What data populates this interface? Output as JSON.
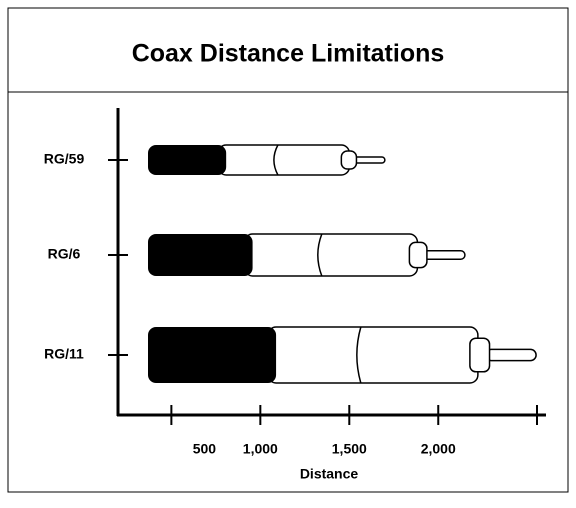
{
  "chart_data": {
    "type": "cable",
    "title": "Coax Distance Limitations",
    "x_label": "Distance",
    "categories": [
      "RG/59",
      "RG/6",
      "RG/11"
    ],
    "values": [
      1700,
      2150,
      2550
    ],
    "xlim": [
      200,
      2600
    ],
    "xticks": [
      500,
      {
        "value": 1000,
        "label": "1,000"
      },
      {
        "value": 1500,
        "label": "1,500"
      },
      {
        "value": 2000,
        "label": "2,000"
      }
    ],
    "color": "#000000"
  }
}
